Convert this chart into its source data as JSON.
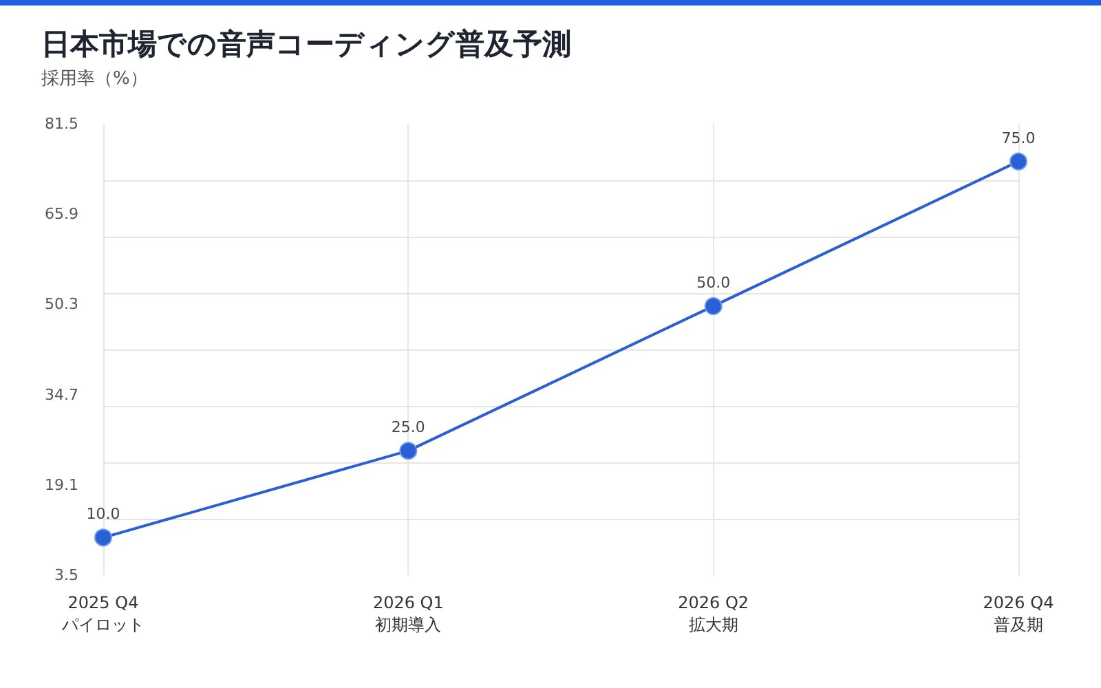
{
  "chart_data": {
    "type": "line",
    "title": "日本市場での音声コーディング普及予測",
    "subtitle": "採用率（%）",
    "categories": [
      "2025 Q4\nパイロット",
      "2026 Q1\n初期導入",
      "2026 Q2\n拡大期",
      "2026 Q4\n普及期"
    ],
    "series": [
      {
        "color": "#2b5fd4",
        "values": [
          10,
          25,
          50,
          75
        ],
        "value_labels": [
          "10.0",
          "25.0",
          "50.0",
          "75.0"
        ]
      }
    ],
    "ylim": [
      3.5,
      81.5
    ],
    "yticks": [
      3.5,
      {
        "value": 13.25,
        "label": null
      },
      19.1,
      {
        "value": 23,
        "label": null
      },
      {
        "value": 32.75,
        "label": null
      },
      34.7,
      {
        "value": 42.5,
        "label": null
      },
      50.3,
      {
        "value": 52.25,
        "label": null
      },
      {
        "value": 62,
        "label": null
      },
      65.9,
      {
        "value": 71.75,
        "label": null
      },
      81.5
    ],
    "grid": true,
    "marker": "circle",
    "line_style": "solid"
  }
}
